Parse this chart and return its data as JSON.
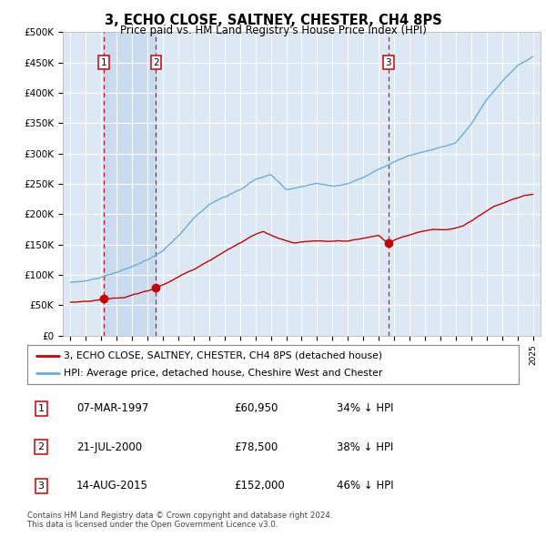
{
  "title": "3, ECHO CLOSE, SALTNEY, CHESTER, CH4 8PS",
  "subtitle": "Price paid vs. HM Land Registry's House Price Index (HPI)",
  "ylim": [
    0,
    500000
  ],
  "yticks": [
    0,
    50000,
    100000,
    150000,
    200000,
    250000,
    300000,
    350000,
    400000,
    450000,
    500000
  ],
  "ytick_labels": [
    "£0",
    "£50K",
    "£100K",
    "£150K",
    "£200K",
    "£250K",
    "£300K",
    "£350K",
    "£400K",
    "£450K",
    "£500K"
  ],
  "hpi_color": "#6baed6",
  "price_color": "#cc0000",
  "vline_color": "#cc0000",
  "background_color": "#dce9f5",
  "shade_color": "#c5d9ee",
  "grid_color": "#ffffff",
  "transactions": [
    {
      "label": "1",
      "date_num": 1997.18,
      "price": 60950
    },
    {
      "label": "2",
      "date_num": 2000.55,
      "price": 78500
    },
    {
      "label": "3",
      "date_num": 2015.62,
      "price": 152000
    }
  ],
  "legend_line1": "3, ECHO CLOSE, SALTNEY, CHESTER, CH4 8PS (detached house)",
  "legend_line2": "HPI: Average price, detached house, Cheshire West and Chester",
  "table_rows": [
    {
      "num": "1",
      "date": "07-MAR-1997",
      "price": "£60,950",
      "hpi": "34% ↓ HPI"
    },
    {
      "num": "2",
      "date": "21-JUL-2000",
      "price": "£78,500",
      "hpi": "38% ↓ HPI"
    },
    {
      "num": "3",
      "date": "14-AUG-2015",
      "price": "£152,000",
      "hpi": "46% ↓ HPI"
    }
  ],
  "footnote": "Contains HM Land Registry data © Crown copyright and database right 2024.\nThis data is licensed under the Open Government Licence v3.0.",
  "xlim_start": 1994.5,
  "xlim_end": 2025.5
}
